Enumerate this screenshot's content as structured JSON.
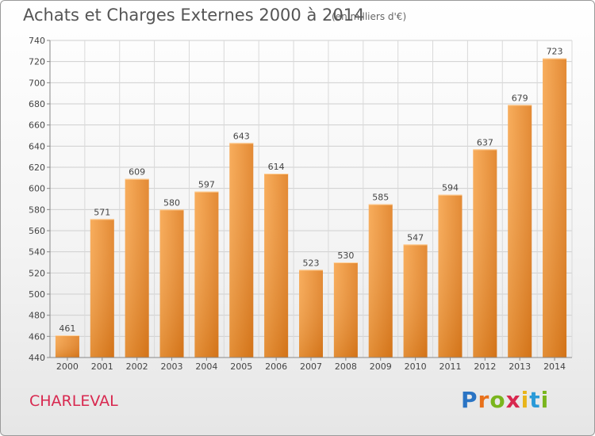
{
  "title": "Achats et Charges Externes 2000 à 2014",
  "subtitle": "(en milliers d'€)",
  "place": "CHARLEVAL",
  "logo": {
    "letters": [
      "P",
      "r",
      "o",
      "x",
      "i",
      "t",
      "i"
    ],
    "colors": [
      "#2a74c4",
      "#e8701a",
      "#7ab51d",
      "#d8284f",
      "#e8b51a",
      "#2a9ad8",
      "#7ab51d"
    ]
  },
  "chart_data": {
    "type": "bar",
    "categories": [
      "2000",
      "2001",
      "2002",
      "2003",
      "2004",
      "2005",
      "2006",
      "2007",
      "2008",
      "2009",
      "2010",
      "2011",
      "2012",
      "2013",
      "2014"
    ],
    "values": [
      461,
      571,
      609,
      580,
      597,
      643,
      614,
      523,
      530,
      585,
      547,
      594,
      637,
      679,
      723
    ],
    "title": "Achats et Charges Externes 2000 à 2014",
    "ylim": [
      440,
      740
    ],
    "yticks": [
      440,
      460,
      480,
      500,
      520,
      540,
      560,
      580,
      600,
      620,
      640,
      660,
      680,
      700,
      720,
      740
    ],
    "grid": true,
    "bar_color": "#f0922e"
  }
}
